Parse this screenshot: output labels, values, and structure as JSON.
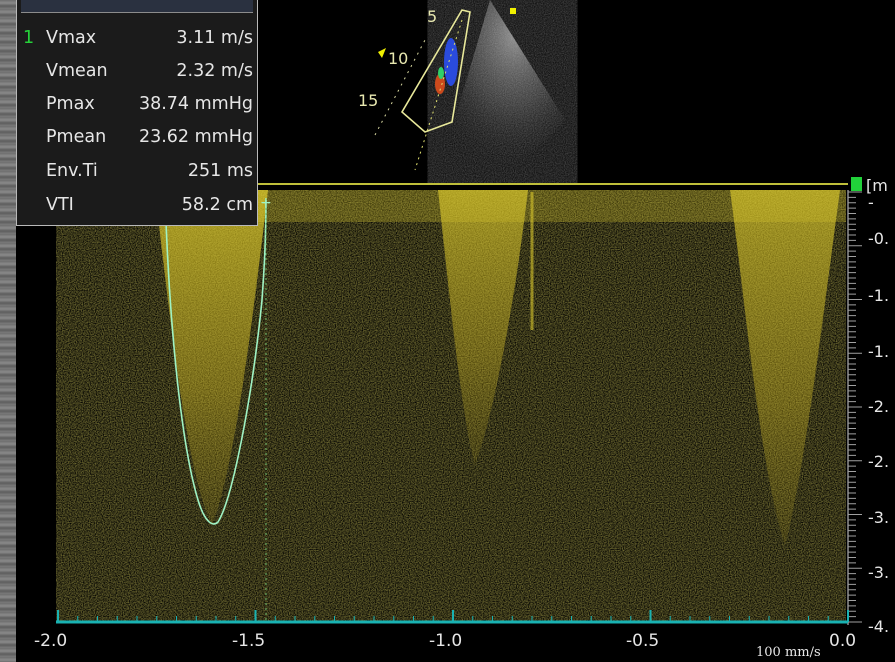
{
  "measurements": {
    "rows": [
      {
        "index": "1",
        "label": "Vmax",
        "value": "3.11 m/s"
      },
      {
        "index": "",
        "label": "Vmean",
        "value": "2.32 m/s"
      },
      {
        "index": "",
        "label": "Pmax",
        "value": "38.74 mmHg"
      },
      {
        "index": "",
        "label": "Pmean",
        "value": "23.62 mmHg"
      },
      {
        "index": "",
        "label": "Env.Ti",
        "value": "251 ms"
      },
      {
        "index": "",
        "label": "VTI",
        "value": "58.2 cm"
      }
    ]
  },
  "echo": {
    "depth_labels": [
      "5",
      "10",
      "15"
    ]
  },
  "doppler": {
    "x_axis": {
      "ticks": [
        "-2.0",
        "-1.5",
        "-1.0",
        "-0.5",
        "0.0"
      ],
      "sweep_speed": "100 mm/s"
    },
    "y_axis": {
      "unit": "[m",
      "ticks": [
        "-",
        "-0.",
        "-1.",
        "-1.",
        "-2.",
        "-2.",
        "-3.",
        "-3.",
        "-4."
      ]
    },
    "colors": {
      "spectrum": "#d7c424",
      "envelope": "#9ff2c4",
      "baseline": "#bfbf3a",
      "x_axis": "#19b2b2",
      "marker": "#21d13a"
    }
  }
}
